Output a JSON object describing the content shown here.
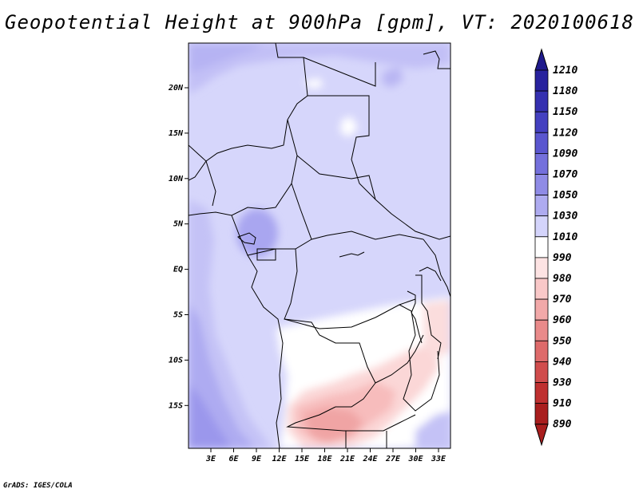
{
  "title": "Geopotential Height at 900hPa [gpm], VT: 2020100618",
  "credit": "GrADS: IGES/COLA",
  "map": {
    "lat_labels": [
      "20N",
      "15N",
      "10N",
      "5N",
      "EQ",
      "5S",
      "10S",
      "15S"
    ],
    "lon_labels": [
      "3E",
      "6E",
      "9E",
      "12E",
      "15E",
      "18E",
      "21E",
      "24E",
      "27E",
      "30E",
      "33E"
    ]
  },
  "colorbar": {
    "levels": [
      "1210",
      "1180",
      "1150",
      "1120",
      "1090",
      "1070",
      "1050",
      "1030",
      "1010",
      "990",
      "980",
      "970",
      "960",
      "950",
      "940",
      "930",
      "910",
      "890"
    ],
    "colors": [
      "#1f1a8c",
      "#28229e",
      "#3530b0",
      "#4440c0",
      "#5a56cf",
      "#7470dc",
      "#8f8be6",
      "#aeabf0",
      "#d4d4fb",
      "#ffffff",
      "#fde3e3",
      "#f9c8c8",
      "#f2a9a9",
      "#e98a8a",
      "#de6a6a",
      "#d04c4c",
      "#bf3030",
      "#a91e1e"
    ]
  }
}
